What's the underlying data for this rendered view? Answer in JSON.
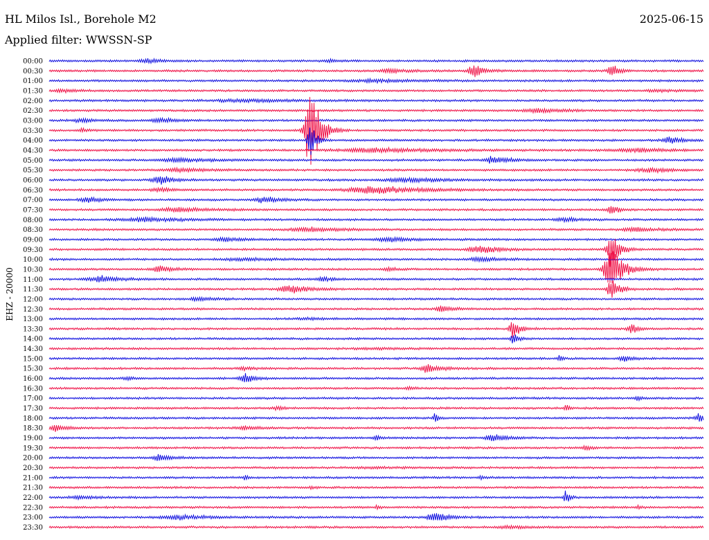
{
  "header": {
    "title": "HL Milos Isl., Borehole M2",
    "date": "2025-06-15",
    "filter": "Applied filter: WWSSN-SP"
  },
  "channel_label": "EHZ - 20000",
  "colors": {
    "blue": "#1010e0",
    "red": "#ef1146"
  },
  "rows": [
    {
      "time": "00:00",
      "color": "blue",
      "events": [
        {
          "x": 0.15,
          "a": 3,
          "w": 0.02
        },
        {
          "x": 0.43,
          "a": 2,
          "w": 0.01
        }
      ]
    },
    {
      "time": "00:30",
      "color": "red",
      "events": [
        {
          "x": 0.52,
          "a": 3,
          "w": 0.03
        },
        {
          "x": 0.65,
          "a": 10,
          "w": 0.015
        },
        {
          "x": 0.86,
          "a": 12,
          "w": 0.01
        }
      ]
    },
    {
      "time": "01:00",
      "color": "blue",
      "events": [
        {
          "x": 0.5,
          "a": 2,
          "w": 0.06
        }
      ]
    },
    {
      "time": "01:30",
      "color": "red",
      "events": [
        {
          "x": 0.02,
          "a": 3,
          "w": 0.02
        },
        {
          "x": 0.93,
          "a": 2,
          "w": 0.03
        }
      ]
    },
    {
      "time": "02:00",
      "color": "blue",
      "events": [
        {
          "x": 0.3,
          "a": 2,
          "w": 0.08
        }
      ]
    },
    {
      "time": "02:30",
      "color": "red",
      "events": [
        {
          "x": 0.75,
          "a": 3,
          "w": 0.04
        }
      ]
    },
    {
      "time": "03:00",
      "color": "blue",
      "events": [
        {
          "x": 0.05,
          "a": 3,
          "w": 0.02
        },
        {
          "x": 0.17,
          "a": 4,
          "w": 0.02
        }
      ]
    },
    {
      "time": "03:30",
      "color": "red",
      "events": [
        {
          "x": 0.4,
          "a": 70,
          "w": 0.015
        },
        {
          "x": 0.05,
          "a": 3,
          "w": 0.01
        }
      ]
    },
    {
      "time": "04:00",
      "color": "blue",
      "events": [
        {
          "x": 0.4,
          "a": 30,
          "w": 0.008
        },
        {
          "x": 0.95,
          "a": 5,
          "w": 0.02
        }
      ]
    },
    {
      "time": "04:30",
      "color": "red",
      "events": [
        {
          "x": 0.5,
          "a": 3,
          "w": 0.1
        },
        {
          "x": 0.9,
          "a": 3,
          "w": 0.05
        }
      ]
    },
    {
      "time": "05:00",
      "color": "blue",
      "events": [
        {
          "x": 0.68,
          "a": 7,
          "w": 0.02
        },
        {
          "x": 0.2,
          "a": 3,
          "w": 0.05
        }
      ]
    },
    {
      "time": "05:30",
      "color": "red",
      "events": [
        {
          "x": 0.2,
          "a": 3,
          "w": 0.04
        },
        {
          "x": 0.92,
          "a": 3,
          "w": 0.04
        }
      ]
    },
    {
      "time": "06:00",
      "color": "blue",
      "events": [
        {
          "x": 0.17,
          "a": 7,
          "w": 0.02
        },
        {
          "x": 0.55,
          "a": 3,
          "w": 0.06
        }
      ]
    },
    {
      "time": "06:30",
      "color": "red",
      "events": [
        {
          "x": 0.5,
          "a": 6,
          "w": 0.07
        },
        {
          "x": 0.17,
          "a": 3,
          "w": 0.02
        }
      ]
    },
    {
      "time": "07:00",
      "color": "blue",
      "events": [
        {
          "x": 0.06,
          "a": 5,
          "w": 0.02
        },
        {
          "x": 0.33,
          "a": 6,
          "w": 0.02
        }
      ]
    },
    {
      "time": "07:30",
      "color": "red",
      "events": [
        {
          "x": 0.2,
          "a": 3,
          "w": 0.05
        },
        {
          "x": 0.86,
          "a": 8,
          "w": 0.01
        }
      ]
    },
    {
      "time": "08:00",
      "color": "blue",
      "events": [
        {
          "x": 0.15,
          "a": 3,
          "w": 0.06
        },
        {
          "x": 0.79,
          "a": 3,
          "w": 0.02
        }
      ]
    },
    {
      "time": "08:30",
      "color": "red",
      "events": [
        {
          "x": 0.4,
          "a": 3,
          "w": 0.05
        },
        {
          "x": 0.9,
          "a": 3,
          "w": 0.04
        }
      ]
    },
    {
      "time": "09:00",
      "color": "blue",
      "events": [
        {
          "x": 0.27,
          "a": 3,
          "w": 0.03
        },
        {
          "x": 0.52,
          "a": 3,
          "w": 0.04
        }
      ]
    },
    {
      "time": "09:30",
      "color": "red",
      "events": [
        {
          "x": 0.66,
          "a": 6,
          "w": 0.03
        },
        {
          "x": 0.86,
          "a": 30,
          "w": 0.012
        }
      ]
    },
    {
      "time": "10:00",
      "color": "blue",
      "events": [
        {
          "x": 0.66,
          "a": 3,
          "w": 0.03
        },
        {
          "x": 0.3,
          "a": 2,
          "w": 0.05
        }
      ]
    },
    {
      "time": "10:30",
      "color": "red",
      "events": [
        {
          "x": 0.17,
          "a": 6,
          "w": 0.02
        },
        {
          "x": 0.86,
          "a": 40,
          "w": 0.018
        },
        {
          "x": 0.52,
          "a": 3,
          "w": 0.01
        }
      ]
    },
    {
      "time": "11:00",
      "color": "blue",
      "events": [
        {
          "x": 0.08,
          "a": 5,
          "w": 0.03
        },
        {
          "x": 0.42,
          "a": 3,
          "w": 0.02
        }
      ]
    },
    {
      "time": "11:30",
      "color": "red",
      "events": [
        {
          "x": 0.37,
          "a": 6,
          "w": 0.03
        },
        {
          "x": 0.86,
          "a": 25,
          "w": 0.01
        }
      ]
    },
    {
      "time": "12:00",
      "color": "blue",
      "events": [
        {
          "x": 0.23,
          "a": 4,
          "w": 0.02
        }
      ]
    },
    {
      "time": "12:30",
      "color": "red",
      "events": [
        {
          "x": 0.6,
          "a": 7,
          "w": 0.015
        }
      ]
    },
    {
      "time": "13:00",
      "color": "blue",
      "events": [
        {
          "x": 0.4,
          "a": 1,
          "w": 0.05
        }
      ]
    },
    {
      "time": "13:30",
      "color": "red",
      "events": [
        {
          "x": 0.71,
          "a": 18,
          "w": 0.01
        },
        {
          "x": 0.89,
          "a": 8,
          "w": 0.01
        }
      ]
    },
    {
      "time": "14:00",
      "color": "blue",
      "events": [
        {
          "x": 0.71,
          "a": 8,
          "w": 0.008
        }
      ]
    },
    {
      "time": "14:30",
      "color": "red",
      "events": [
        {
          "x": 0.5,
          "a": 1,
          "w": 0.05
        }
      ]
    },
    {
      "time": "15:00",
      "color": "blue",
      "events": [
        {
          "x": 0.78,
          "a": 5,
          "w": 0.005
        },
        {
          "x": 0.88,
          "a": 4,
          "w": 0.015
        }
      ]
    },
    {
      "time": "15:30",
      "color": "red",
      "events": [
        {
          "x": 0.58,
          "a": 7,
          "w": 0.02
        },
        {
          "x": 0.3,
          "a": 2,
          "w": 0.02
        }
      ]
    },
    {
      "time": "16:00",
      "color": "blue",
      "events": [
        {
          "x": 0.3,
          "a": 7,
          "w": 0.015
        },
        {
          "x": 0.12,
          "a": 3,
          "w": 0.01
        }
      ]
    },
    {
      "time": "16:30",
      "color": "red",
      "events": [
        {
          "x": 0.55,
          "a": 2,
          "w": 0.01
        }
      ]
    },
    {
      "time": "17:00",
      "color": "blue",
      "events": [
        {
          "x": 0.9,
          "a": 4,
          "w": 0.006
        }
      ]
    },
    {
      "time": "17:30",
      "color": "red",
      "events": [
        {
          "x": 0.35,
          "a": 3,
          "w": 0.01
        },
        {
          "x": 0.79,
          "a": 6,
          "w": 0.005
        }
      ]
    },
    {
      "time": "18:00",
      "color": "blue",
      "events": [
        {
          "x": 0.59,
          "a": 9,
          "w": 0.005
        },
        {
          "x": 0.995,
          "a": 8,
          "w": 0.01
        }
      ]
    },
    {
      "time": "18:30",
      "color": "red",
      "events": [
        {
          "x": 0.01,
          "a": 6,
          "w": 0.015
        },
        {
          "x": 0.3,
          "a": 3,
          "w": 0.02
        }
      ]
    },
    {
      "time": "19:00",
      "color": "blue",
      "events": [
        {
          "x": 0.68,
          "a": 6,
          "w": 0.02
        },
        {
          "x": 0.5,
          "a": 3,
          "w": 0.01
        }
      ]
    },
    {
      "time": "19:30",
      "color": "red",
      "events": [
        {
          "x": 0.82,
          "a": 5,
          "w": 0.008
        }
      ]
    },
    {
      "time": "20:00",
      "color": "blue",
      "events": [
        {
          "x": 0.17,
          "a": 7,
          "w": 0.015
        }
      ]
    },
    {
      "time": "20:30",
      "color": "red",
      "events": [
        {
          "x": 0.5,
          "a": 1,
          "w": 0.05
        }
      ]
    },
    {
      "time": "21:00",
      "color": "blue",
      "events": [
        {
          "x": 0.3,
          "a": 4,
          "w": 0.005
        },
        {
          "x": 0.66,
          "a": 3,
          "w": 0.005
        }
      ]
    },
    {
      "time": "21:30",
      "color": "red",
      "events": [
        {
          "x": 0.4,
          "a": 3,
          "w": 0.005
        }
      ]
    },
    {
      "time": "22:00",
      "color": "blue",
      "events": [
        {
          "x": 0.79,
          "a": 10,
          "w": 0.006
        },
        {
          "x": 0.05,
          "a": 2,
          "w": 0.03
        }
      ]
    },
    {
      "time": "22:30",
      "color": "red",
      "events": [
        {
          "x": 0.5,
          "a": 3,
          "w": 0.005
        },
        {
          "x": 0.9,
          "a": 2,
          "w": 0.005
        }
      ]
    },
    {
      "time": "23:00",
      "color": "blue",
      "events": [
        {
          "x": 0.59,
          "a": 8,
          "w": 0.02
        },
        {
          "x": 0.2,
          "a": 3,
          "w": 0.05
        }
      ]
    },
    {
      "time": "23:30",
      "color": "red",
      "events": [
        {
          "x": 0.7,
          "a": 2,
          "w": 0.03
        }
      ]
    }
  ]
}
